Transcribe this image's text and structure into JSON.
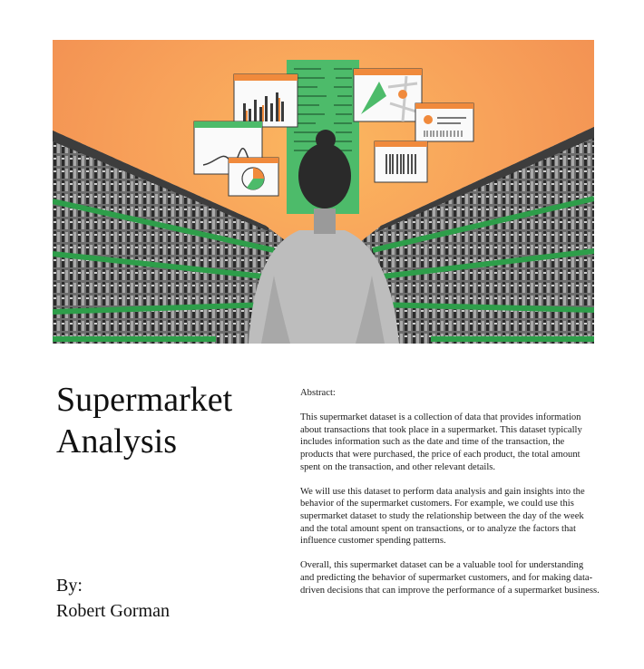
{
  "hero": {
    "alt_icon": "supermarket-aisle-illustration",
    "colors": {
      "background": "#f79d57",
      "shelf_green": "#2e9e4a",
      "screen_green": "#4dbb6a"
    }
  },
  "title": {
    "line1": "Supermarket",
    "line2": "Analysis"
  },
  "byline": {
    "label": "By:",
    "author": "Robert Gorman"
  },
  "abstract": {
    "heading": "Abstract:",
    "paragraphs": [
      "This supermarket dataset is a collection of data that provides information about transactions that took place in a supermarket. This dataset typically includes information such as the date and time of the transaction, the products that were purchased, the price of each product, the total amount spent on the transaction, and other relevant details.",
      "We will use this dataset to perform data analysis and gain insights into the behavior of the supermarket customers. For example, we could use this supermarket dataset to study the relationship between the day of the week and the total amount spent on transactions, or to analyze the factors that influence customer spending patterns.",
      "Overall, this supermarket dataset can be a valuable tool for understanding and predicting the behavior of supermarket customers, and for making data-driven decisions that can improve the performance of a supermarket business."
    ]
  }
}
